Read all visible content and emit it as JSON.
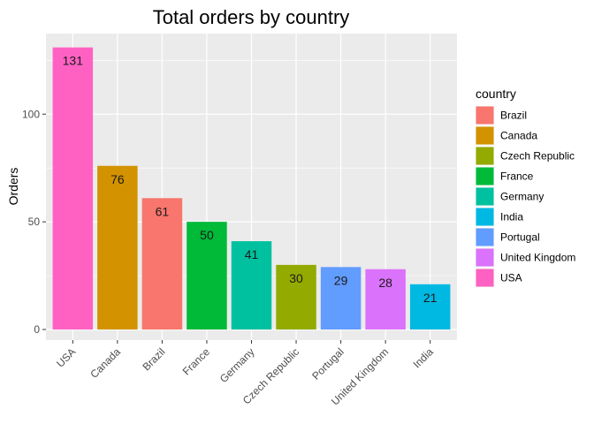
{
  "chart_data": {
    "type": "bar",
    "title": "Total orders by country",
    "xlabel": "",
    "ylabel": "Orders",
    "ylim": [
      0,
      135
    ],
    "yticks": [
      "0",
      "50",
      "100"
    ],
    "grid": true,
    "legend_position": "right",
    "legend_title": "country",
    "categories": [
      "USA",
      "Canada",
      "Brazil",
      "France",
      "Germany",
      "Czech Republic",
      "Portugal",
      "United Kingdom",
      "India"
    ],
    "values": [
      131,
      76,
      61,
      50,
      41,
      30,
      29,
      28,
      21
    ],
    "bar_colors": [
      "#FF61C3",
      "#D39200",
      "#F8766D",
      "#00BA38",
      "#00C19F",
      "#93AA00",
      "#619CFF",
      "#DB72FB",
      "#00B9E3"
    ],
    "legend": [
      {
        "label": "Brazil",
        "color": "#F8766D"
      },
      {
        "label": "Canada",
        "color": "#D39200"
      },
      {
        "label": "Czech Republic",
        "color": "#93AA00"
      },
      {
        "label": "France",
        "color": "#00BA38"
      },
      {
        "label": "Germany",
        "color": "#00C19F"
      },
      {
        "label": "India",
        "color": "#00B9E3"
      },
      {
        "label": "Portugal",
        "color": "#619CFF"
      },
      {
        "label": "United Kingdom",
        "color": "#DB72FB"
      },
      {
        "label": "USA",
        "color": "#FF61C3"
      }
    ],
    "panel_color": "#EBEBEB"
  }
}
